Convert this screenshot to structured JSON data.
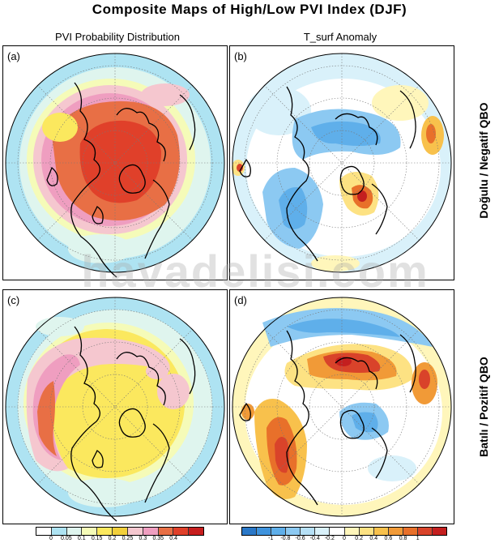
{
  "title": "Composite Maps of High/Low PVI Index (DJF)",
  "columns": {
    "left": "PVI Probability Distribution",
    "right": "T_surf Anomaly"
  },
  "rows": {
    "top": "Doğulu / Negatif QBO",
    "bottom": "Batılı / Pozitif QBO"
  },
  "panels": {
    "a": "(a)",
    "b": "(b)",
    "c": "(c)",
    "d": "(d)"
  },
  "watermark": "havadelisi.com",
  "colorbars": {
    "left": {
      "colors": [
        "#ffffff",
        "#aee3f2",
        "#dff5ee",
        "#f5fbb8",
        "#fbe85e",
        "#f2cf3b",
        "#f5c7cf",
        "#ef9ec0",
        "#e86f45",
        "#e0402a",
        "#c71e1e"
      ],
      "ticks": [
        "0",
        "0.05",
        "0.1",
        "0.15",
        "0.2",
        "0.25",
        "0.3",
        "0.35",
        "0.4"
      ]
    },
    "right": {
      "colors": [
        "#2a78c8",
        "#3f93dd",
        "#5fafea",
        "#8cc9f2",
        "#b6e0f6",
        "#d9f1fa",
        "#ffffff",
        "#fff6bb",
        "#fde283",
        "#f8c14c",
        "#f19a37",
        "#e8702a",
        "#d9432a",
        "#c41f1f"
      ],
      "ticks": [
        "-1",
        "-0.8",
        "-0.6",
        "-0.4",
        "-0.2",
        "0",
        "0.2",
        "0.4",
        "0.6",
        "0.8",
        "1"
      ]
    }
  }
}
